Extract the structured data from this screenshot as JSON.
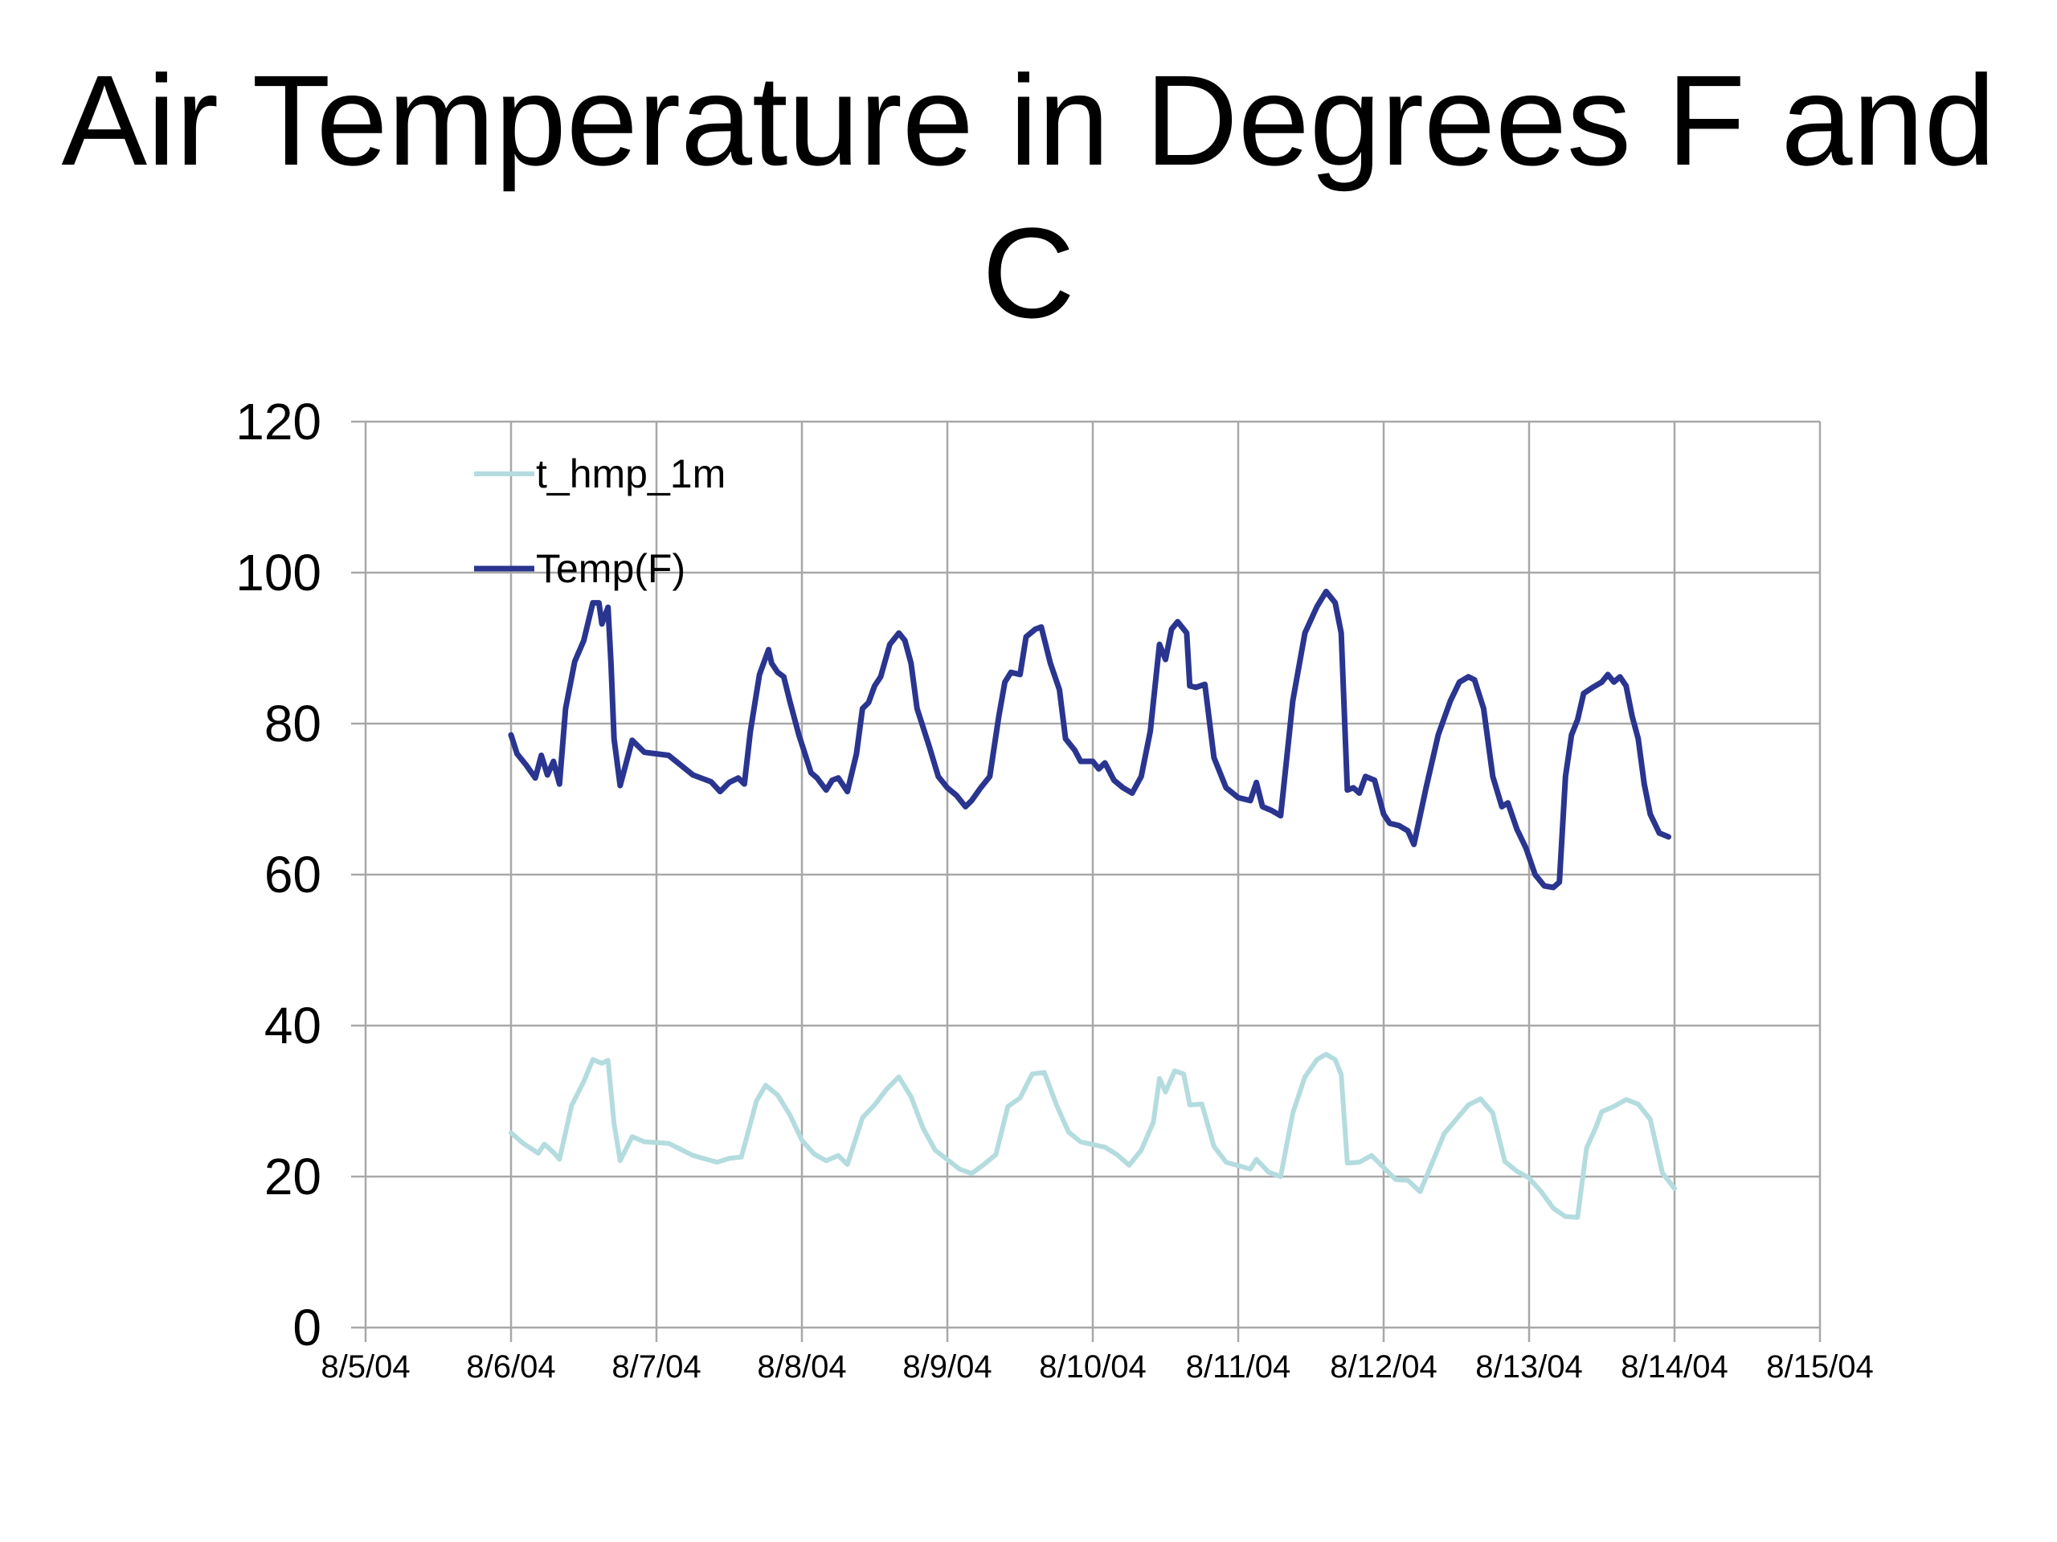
{
  "slide": {
    "title": "Air Temperature in Degrees F and C"
  },
  "chart_data": {
    "type": "line",
    "title": "Air Temperature in Degrees F and C",
    "xlabel": "",
    "ylabel": "",
    "xlim": [
      "8/5/04",
      "8/15/04"
    ],
    "ylim": [
      0,
      120
    ],
    "x_ticks": [
      "8/5/04",
      "8/6/04",
      "8/7/04",
      "8/8/04",
      "8/9/04",
      "8/10/04",
      "8/11/04",
      "8/12/04",
      "8/13/04",
      "8/14/04",
      "8/15/04"
    ],
    "y_ticks": [
      0,
      20,
      40,
      60,
      80,
      100,
      120
    ],
    "grid": true,
    "legend": "top-left",
    "series": [
      {
        "name": "t_hmp_1m",
        "color": "#b4dcdf",
        "points": [
          [
            "8/6/04 00:00",
            25.8
          ],
          [
            "8/6/04 02:00",
            24.4
          ],
          [
            "8/6/04 04:30",
            23.1
          ],
          [
            "8/6/04 05:30",
            24.3
          ],
          [
            "8/6/04 07:00",
            23.2
          ],
          [
            "8/6/04 08:00",
            22.3
          ],
          [
            "8/6/04 10:00",
            29.4
          ],
          [
            "8/6/04 12:00",
            32.6
          ],
          [
            "8/6/04 13:30",
            35.5
          ],
          [
            "8/6/04 15:00",
            35.0
          ],
          [
            "8/6/04 16:00",
            35.4
          ],
          [
            "8/6/04 17:00",
            27.0
          ],
          [
            "8/6/04 18:00",
            22.1
          ],
          [
            "8/6/04 20:00",
            25.3
          ],
          [
            "8/6/04 22:00",
            24.6
          ],
          [
            "8/7/04 02:00",
            24.4
          ],
          [
            "8/7/04 06:00",
            22.8
          ],
          [
            "8/7/04 10:00",
            21.9
          ],
          [
            "8/7/04 12:00",
            22.4
          ],
          [
            "8/7/04 14:00",
            22.6
          ],
          [
            "8/7/04 15:00",
            25.5
          ],
          [
            "8/7/04 16:30",
            30.0
          ],
          [
            "8/7/04 18:00",
            32.1
          ],
          [
            "8/7/04 20:00",
            30.8
          ],
          [
            "8/7/04 22:00",
            28.2
          ],
          [
            "8/8/04 00:00",
            24.8
          ],
          [
            "8/8/04 02:00",
            23.0
          ],
          [
            "8/8/04 04:00",
            22.1
          ],
          [
            "8/8/04 06:00",
            22.8
          ],
          [
            "8/8/04 07:30",
            21.6
          ],
          [
            "8/8/04 10:00",
            27.8
          ],
          [
            "8/8/04 12:00",
            29.5
          ],
          [
            "8/8/04 14:00",
            31.6
          ],
          [
            "8/8/04 16:00",
            33.2
          ],
          [
            "8/8/04 18:00",
            30.6
          ],
          [
            "8/8/04 20:00",
            26.4
          ],
          [
            "8/8/04 22:00",
            23.5
          ],
          [
            "8/9/04 02:00",
            21.0
          ],
          [
            "8/9/04 04:00",
            20.4
          ],
          [
            "8/9/04 06:00",
            21.6
          ],
          [
            "8/9/04 08:00",
            22.9
          ],
          [
            "8/9/04 10:00",
            29.3
          ],
          [
            "8/9/04 12:00",
            30.4
          ],
          [
            "8/9/04 14:00",
            33.6
          ],
          [
            "8/9/04 16:00",
            33.8
          ],
          [
            "8/9/04 18:00",
            29.5
          ],
          [
            "8/9/04 20:00",
            25.9
          ],
          [
            "8/9/04 22:00",
            24.6
          ],
          [
            "8/10/04 02:00",
            23.9
          ],
          [
            "8/10/04 04:00",
            22.9
          ],
          [
            "8/10/04 06:00",
            21.5
          ],
          [
            "8/10/04 08:00",
            23.5
          ],
          [
            "8/10/04 10:00",
            27.2
          ],
          [
            "8/10/04 11:00",
            33.0
          ],
          [
            "8/10/04 12:00",
            31.2
          ],
          [
            "8/10/04 13:30",
            34.0
          ],
          [
            "8/10/04 15:00",
            33.6
          ],
          [
            "8/10/04 16:00",
            29.5
          ],
          [
            "8/10/04 18:00",
            29.6
          ],
          [
            "8/10/04 20:00",
            24.0
          ],
          [
            "8/10/04 22:00",
            21.9
          ],
          [
            "8/11/04 02:00",
            21.0
          ],
          [
            "8/11/04 03:00",
            22.3
          ],
          [
            "8/11/04 05:00",
            20.6
          ],
          [
            "8/11/04 07:00",
            20.0
          ],
          [
            "8/11/04 09:00",
            28.4
          ],
          [
            "8/11/04 11:00",
            33.2
          ],
          [
            "8/11/04 13:00",
            35.5
          ],
          [
            "8/11/04 14:30",
            36.2
          ],
          [
            "8/11/04 16:00",
            35.5
          ],
          [
            "8/11/04 17:00",
            33.5
          ],
          [
            "8/11/04 18:00",
            21.8
          ],
          [
            "8/11/04 20:00",
            21.9
          ],
          [
            "8/11/04 22:00",
            22.8
          ],
          [
            "8/12/04 02:00",
            19.6
          ],
          [
            "8/12/04 04:00",
            19.5
          ],
          [
            "8/12/04 06:00",
            18.0
          ],
          [
            "8/12/04 08:00",
            21.8
          ],
          [
            "8/12/04 10:00",
            25.7
          ],
          [
            "8/12/04 12:00",
            27.6
          ],
          [
            "8/12/04 14:00",
            29.5
          ],
          [
            "8/12/04 16:00",
            30.3
          ],
          [
            "8/12/04 18:00",
            28.4
          ],
          [
            "8/12/04 20:00",
            22.0
          ],
          [
            "8/12/04 22:00",
            20.7
          ],
          [
            "8/13/04 00:00",
            19.8
          ],
          [
            "8/13/04 02:00",
            18.0
          ],
          [
            "8/13/04 04:00",
            15.8
          ],
          [
            "8/13/04 06:00",
            14.7
          ],
          [
            "8/13/04 08:00",
            14.6
          ],
          [
            "8/13/04 09:30",
            23.8
          ],
          [
            "8/13/04 11:00",
            26.5
          ],
          [
            "8/13/04 12:00",
            28.6
          ],
          [
            "8/13/04 14:00",
            29.3
          ],
          [
            "8/13/04 16:00",
            30.2
          ],
          [
            "8/13/04 18:00",
            29.6
          ],
          [
            "8/13/04 20:00",
            27.6
          ],
          [
            "8/13/04 22:00",
            20.5
          ],
          [
            "8/14/04 00:00",
            18.4
          ]
        ]
      },
      {
        "name": "Temp(F)",
        "color": "#2a3590",
        "points": [
          [
            "8/6/04 00:00",
            78.5
          ],
          [
            "8/6/04 01:00",
            76.0
          ],
          [
            "8/6/04 02:30",
            74.5
          ],
          [
            "8/6/04 04:00",
            72.8
          ],
          [
            "8/6/04 05:00",
            75.8
          ],
          [
            "8/6/04 06:00",
            73.2
          ],
          [
            "8/6/04 07:00",
            75.0
          ],
          [
            "8/6/04 08:00",
            72.0
          ],
          [
            "8/6/04 09:00",
            82.0
          ],
          [
            "8/6/04 10:30",
            88.2
          ],
          [
            "8/6/04 12:00",
            91.0
          ],
          [
            "8/6/04 13:30",
            96.0
          ],
          [
            "8/6/04 14:30",
            96.0
          ],
          [
            "8/6/04 15:00",
            93.2
          ],
          [
            "8/6/04 16:00",
            95.4
          ],
          [
            "8/6/04 16:30",
            88.0
          ],
          [
            "8/6/04 17:00",
            78.0
          ],
          [
            "8/6/04 18:00",
            71.8
          ],
          [
            "8/6/04 20:00",
            77.8
          ],
          [
            "8/6/04 22:00",
            76.2
          ],
          [
            "8/7/04 02:00",
            75.8
          ],
          [
            "8/7/04 06:00",
            73.2
          ],
          [
            "8/7/04 09:00",
            72.3
          ],
          [
            "8/7/04 10:30",
            71.0
          ],
          [
            "8/7/04 12:00",
            72.2
          ],
          [
            "8/7/04 13:30",
            72.8
          ],
          [
            "8/7/04 14:30",
            72.0
          ],
          [
            "8/7/04 15:30",
            79.0
          ],
          [
            "8/7/04 17:00",
            86.5
          ],
          [
            "8/7/04 18:30",
            89.8
          ],
          [
            "8/7/04 19:00",
            88.0
          ],
          [
            "8/7/04 20:00",
            86.8
          ],
          [
            "8/7/04 21:00",
            86.2
          ],
          [
            "8/7/04 22:00",
            83.0
          ],
          [
            "8/7/04 23:30",
            78.5
          ],
          [
            "8/8/04 00:30",
            76.0
          ],
          [
            "8/8/04 01:30",
            73.5
          ],
          [
            "8/8/04 02:30",
            72.8
          ],
          [
            "8/8/04 04:00",
            71.2
          ],
          [
            "8/8/04 05:00",
            72.5
          ],
          [
            "8/8/04 06:00",
            72.8
          ],
          [
            "8/8/04 07:30",
            71.0
          ],
          [
            "8/8/04 09:00",
            76.0
          ],
          [
            "8/8/04 10:00",
            82.0
          ],
          [
            "8/8/04 11:00",
            82.8
          ],
          [
            "8/8/04 12:00",
            85.0
          ],
          [
            "8/8/04 13:00",
            86.2
          ],
          [
            "8/8/04 14:30",
            90.5
          ],
          [
            "8/8/04 16:00",
            92.0
          ],
          [
            "8/8/04 17:00",
            91.0
          ],
          [
            "8/8/04 18:00",
            88.0
          ],
          [
            "8/8/04 19:00",
            82.0
          ],
          [
            "8/8/04 21:00",
            77.0
          ],
          [
            "8/8/04 22:30",
            73.0
          ],
          [
            "8/9/04 00:00",
            71.5
          ],
          [
            "8/9/04 01:30",
            70.5
          ],
          [
            "8/9/04 03:00",
            69.0
          ],
          [
            "8/9/04 04:00",
            69.8
          ],
          [
            "8/9/04 05:30",
            71.5
          ],
          [
            "8/9/04 07:00",
            73.0
          ],
          [
            "8/9/04 08:30",
            81.0
          ],
          [
            "8/9/04 09:30",
            85.5
          ],
          [
            "8/9/04 10:30",
            86.8
          ],
          [
            "8/9/04 12:00",
            86.5
          ],
          [
            "8/9/04 13:00",
            91.5
          ],
          [
            "8/9/04 14:30",
            92.5
          ],
          [
            "8/9/04 15:30",
            92.8
          ],
          [
            "8/9/04 17:00",
            88.0
          ],
          [
            "8/9/04 18:30",
            84.5
          ],
          [
            "8/9/04 19:30",
            78.0
          ],
          [
            "8/9/04 21:00",
            76.5
          ],
          [
            "8/9/04 22:00",
            75.0
          ],
          [
            "8/10/04 00:00",
            75.0
          ],
          [
            "8/10/04 01:00",
            74.0
          ],
          [
            "8/10/04 02:00",
            74.8
          ],
          [
            "8/10/04 03:30",
            72.5
          ],
          [
            "8/10/04 05:00",
            71.5
          ],
          [
            "8/10/04 06:30",
            70.8
          ],
          [
            "8/10/04 08:00",
            73.0
          ],
          [
            "8/10/04 09:30",
            79.0
          ],
          [
            "8/10/04 11:00",
            90.5
          ],
          [
            "8/10/04 12:00",
            88.5
          ],
          [
            "8/10/04 13:00",
            92.5
          ],
          [
            "8/10/04 14:00",
            93.5
          ],
          [
            "8/10/04 15:30",
            92.0
          ],
          [
            "8/10/04 16:00",
            85.0
          ],
          [
            "8/10/04 17:00",
            84.8
          ],
          [
            "8/10/04 18:30",
            85.2
          ],
          [
            "8/10/04 20:00",
            75.5
          ],
          [
            "8/10/04 22:00",
            71.5
          ],
          [
            "8/11/04 00:00",
            70.2
          ],
          [
            "8/11/04 02:00",
            69.8
          ],
          [
            "8/11/04 03:00",
            72.2
          ],
          [
            "8/11/04 04:00",
            69.0
          ],
          [
            "8/11/04 05:30",
            68.5
          ],
          [
            "8/11/04 07:00",
            67.8
          ],
          [
            "8/11/04 09:00",
            83.0
          ],
          [
            "8/11/04 11:00",
            92.0
          ],
          [
            "8/11/04 13:00",
            95.5
          ],
          [
            "8/11/04 14:30",
            97.5
          ],
          [
            "8/11/04 16:00",
            96.0
          ],
          [
            "8/11/04 17:00",
            92.0
          ],
          [
            "8/11/04 18:00",
            71.2
          ],
          [
            "8/11/04 19:00",
            71.5
          ],
          [
            "8/11/04 20:00",
            70.8
          ],
          [
            "8/11/04 21:00",
            73.0
          ],
          [
            "8/11/04 22:30",
            72.5
          ],
          [
            "8/12/04 00:00",
            68.0
          ],
          [
            "8/12/04 01:00",
            66.8
          ],
          [
            "8/12/04 02:30",
            66.5
          ],
          [
            "8/12/04 04:00",
            65.8
          ],
          [
            "8/12/04 05:00",
            64.0
          ],
          [
            "8/12/04 07:00",
            71.5
          ],
          [
            "8/12/04 09:00",
            78.5
          ],
          [
            "8/12/04 11:00",
            83.0
          ],
          [
            "8/12/04 12:30",
            85.5
          ],
          [
            "8/12/04 14:00",
            86.2
          ],
          [
            "8/12/04 15:00",
            85.8
          ],
          [
            "8/12/04 16:30",
            82.0
          ],
          [
            "8/12/04 18:00",
            73.0
          ],
          [
            "8/12/04 19:30",
            69.0
          ],
          [
            "8/12/04 20:30",
            69.5
          ],
          [
            "8/12/04 22:00",
            66.0
          ],
          [
            "8/12/04 23:30",
            63.5
          ],
          [
            "8/13/04 01:00",
            60.0
          ],
          [
            "8/13/04 02:30",
            58.5
          ],
          [
            "8/13/04 04:00",
            58.3
          ],
          [
            "8/13/04 05:00",
            59.0
          ],
          [
            "8/13/04 06:00",
            73.0
          ],
          [
            "8/13/04 07:00",
            78.5
          ],
          [
            "8/13/04 08:00",
            80.5
          ],
          [
            "8/13/04 09:00",
            84.0
          ],
          [
            "8/13/04 10:30",
            84.8
          ],
          [
            "8/13/04 12:00",
            85.5
          ],
          [
            "8/13/04 13:00",
            86.5
          ],
          [
            "8/13/04 14:00",
            85.5
          ],
          [
            "8/13/04 15:00",
            86.2
          ],
          [
            "8/13/04 16:00",
            85.0
          ],
          [
            "8/13/04 17:00",
            81.0
          ],
          [
            "8/13/04 18:00",
            78.0
          ],
          [
            "8/13/04 19:00",
            72.0
          ],
          [
            "8/13/04 20:00",
            68.0
          ],
          [
            "8/13/04 21:30",
            65.5
          ],
          [
            "8/13/04 23:00",
            65.0
          ]
        ]
      }
    ]
  }
}
